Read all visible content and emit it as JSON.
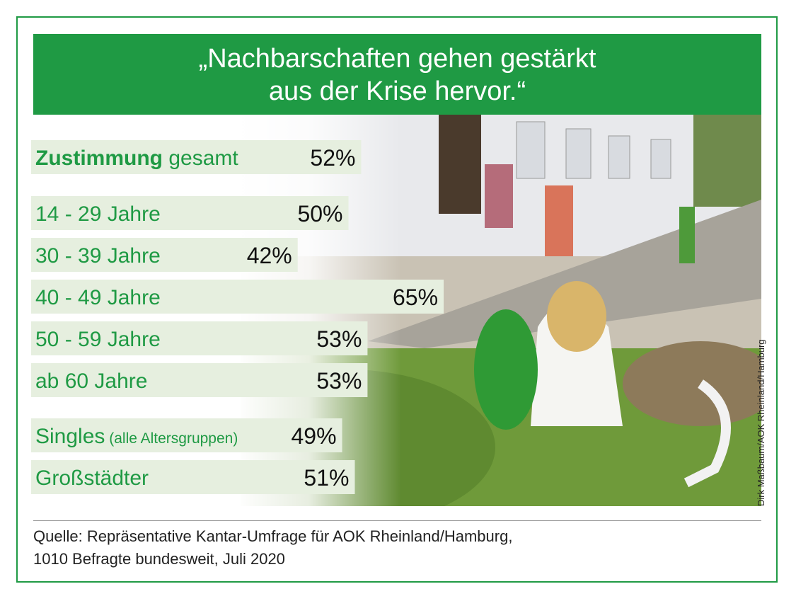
{
  "title_line1": "„Nachbarschaften gehen gestärkt",
  "title_line2": "aus der Krise hervor.“",
  "colors": {
    "brand_green": "#1f9a44",
    "bar_fill": "#e6efdf"
  },
  "chart_data": {
    "type": "bar",
    "orientation": "horizontal",
    "unit": "%",
    "categories": [
      "Zustimmung gesamt",
      "14 - 29 Jahre",
      "30 - 39 Jahre",
      "40 - 49 Jahre",
      "50 - 59 Jahre",
      "ab 60 Jahre",
      "Singles (alle Altersgruppen)",
      "Großstädter"
    ],
    "values": [
      52,
      50,
      42,
      65,
      53,
      53,
      49,
      51
    ],
    "value_labels": [
      "52%",
      "50%",
      "42%",
      "65%",
      "53%",
      "53%",
      "49%",
      "51%"
    ],
    "rows": [
      {
        "label_bold": "Zustimmung",
        "label_rest": " gesamt",
        "label_small": ""
      },
      {
        "label_bold": "",
        "label_rest": "14 - 29 Jahre",
        "label_small": ""
      },
      {
        "label_bold": "",
        "label_rest": "30 - 39 Jahre",
        "label_small": ""
      },
      {
        "label_bold": "",
        "label_rest": "40 - 49 Jahre",
        "label_small": ""
      },
      {
        "label_bold": "",
        "label_rest": "50 - 59 Jahre",
        "label_small": ""
      },
      {
        "label_bold": "",
        "label_rest": "ab 60 Jahre",
        "label_small": ""
      },
      {
        "label_bold": "",
        "label_rest": "Singles",
        "label_small": " (alle Altersgruppen)"
      },
      {
        "label_bold": "",
        "label_rest": "Großstädter",
        "label_small": ""
      }
    ]
  },
  "photo_credit": "Dirk Maßbaum/AOK Rheinland/Hamburg",
  "source_line1": "Quelle: Repräsentative Kantar-Umfrage für AOK Rheinland/Hamburg,",
  "source_line2": "1010 Befragte bundesweit, Juli 2020"
}
